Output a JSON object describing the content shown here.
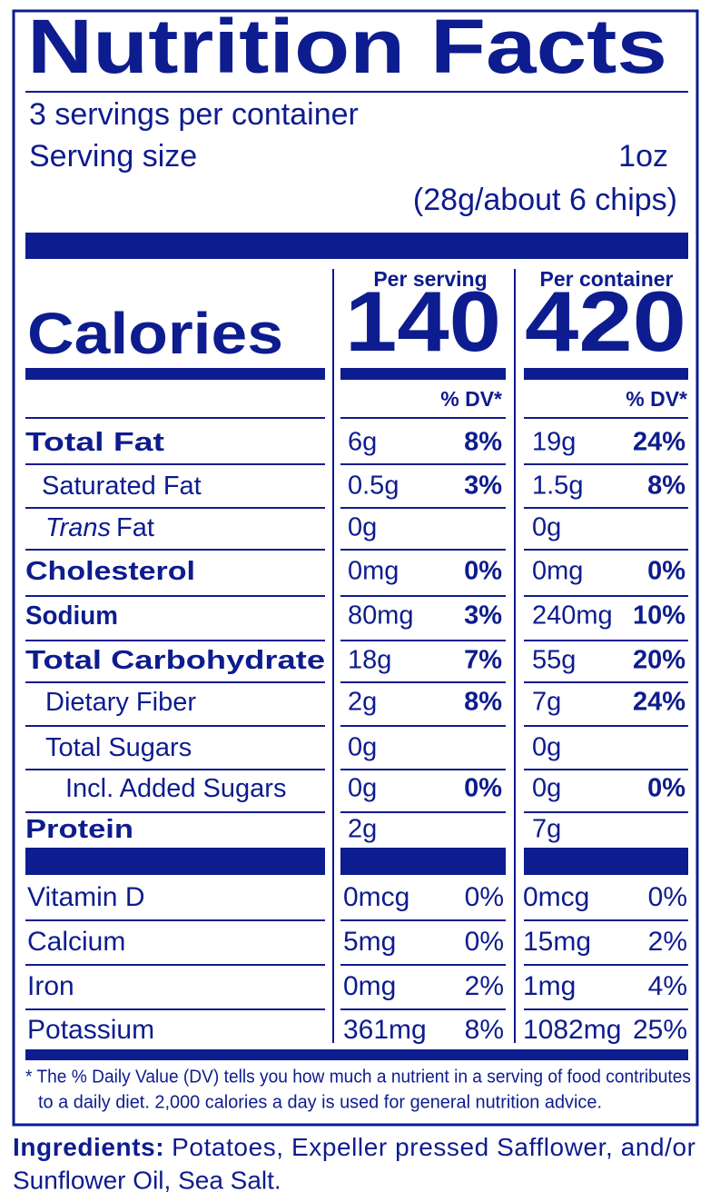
{
  "title": "Nutrition Facts",
  "servings": "3 servings per container",
  "serving_size": {
    "label": "Serving size",
    "amount": "1oz",
    "detail": "(28g/about 6 chips)"
  },
  "calories": {
    "label": "Calories",
    "per_serving_header": "Per serving",
    "per_serving": "140",
    "per_container_header": "Per container",
    "per_container": "420"
  },
  "dv_header": "% DV*",
  "nutrients": [
    {
      "name": "Total Fat",
      "amount": "6g",
      "dv": "8%",
      "container_amount": "19g",
      "container_dv": "24%"
    },
    {
      "name": "Saturated Fat",
      "amount": "0.5g",
      "dv": "3%",
      "container_amount": "1.5g",
      "container_dv": "8%"
    },
    {
      "name_italic": "Trans",
      "name": "Fat",
      "amount": "0g",
      "container_amount": "0g"
    },
    {
      "name": "Cholesterol",
      "amount": "0mg",
      "dv": "0%",
      "container_amount": "0mg",
      "container_dv": "0%"
    },
    {
      "name": "Sodium",
      "amount": "80mg",
      "dv": "3%",
      "container_amount": "240mg",
      "container_dv": "10%"
    },
    {
      "name": "Total Carbohydrate",
      "amount": "18g",
      "dv": "7%",
      "container_amount": "55g",
      "container_dv": "20%"
    },
    {
      "name": "Dietary Fiber",
      "amount": "2g",
      "dv": "8%",
      "container_amount": "7g",
      "container_dv": "24%"
    },
    {
      "name": "Total Sugars",
      "amount": "0g",
      "container_amount": "0g"
    },
    {
      "name": "Incl. Added Sugars",
      "amount": "0g",
      "dv": "0%",
      "container_amount": "0g",
      "container_dv": "0%"
    },
    {
      "name": "Protein",
      "amount": "2g",
      "container_amount": "7g"
    }
  ],
  "vitamins": [
    {
      "name": "Vitamin D",
      "amount": "0mcg",
      "dv": "0%",
      "container_amount": "0mcg",
      "container_dv": "0%"
    },
    {
      "name": "Calcium",
      "amount": "5mg",
      "dv": "0%",
      "container_amount": "15mg",
      "container_dv": "2%"
    },
    {
      "name": "Iron",
      "amount": "0mg",
      "dv": "2%",
      "container_amount": "1mg",
      "container_dv": "4%"
    },
    {
      "name": "Potassium",
      "amount": "361mg",
      "dv": "8%",
      "container_amount": "1082mg",
      "container_dv": "25%"
    }
  ],
  "footnote": [
    "* The % Daily Value (DV) tells you how much a nutrient in a serving of food contributes",
    "to a daily diet. 2,000 calories a day is used for general nutrition advice."
  ],
  "ingredients": {
    "label": "Ingredients:",
    "lines": [
      "Potatoes, Expeller pressed Safflower, and/or",
      "Sunflower Oil, Sea Salt."
    ]
  }
}
